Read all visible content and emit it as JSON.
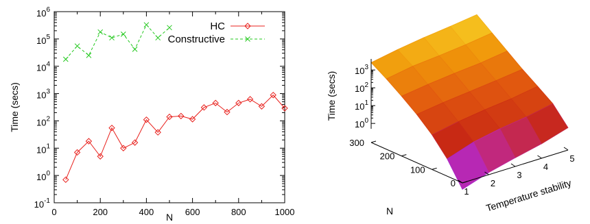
{
  "chart_data": [
    {
      "type": "line",
      "xlabel": "N",
      "ylabel": "Time (secs)",
      "xlim": [
        0,
        1000
      ],
      "ylim": [
        0.1,
        1000000
      ],
      "y_scale": "log",
      "xticks": [
        "0",
        "200",
        "400",
        "600",
        "800",
        "1000"
      ],
      "yticks": [
        {
          "base": "10",
          "exp": "-1",
          "value": 0.1
        },
        {
          "base": "10",
          "exp": "0",
          "value": 1
        },
        {
          "base": "10",
          "exp": "1",
          "value": 10
        },
        {
          "base": "10",
          "exp": "2",
          "value": 100
        },
        {
          "base": "10",
          "exp": "3",
          "value": 1000
        },
        {
          "base": "10",
          "exp": "4",
          "value": 10000
        },
        {
          "base": "10",
          "exp": "5",
          "value": 100000
        },
        {
          "base": "10",
          "exp": "6",
          "value": 1000000
        }
      ],
      "legend_position": "top-right",
      "grid": false,
      "series": [
        {
          "name": "HC",
          "color": "#e8201c",
          "marker": "diamond",
          "line": "solid",
          "x": [
            50,
            100,
            150,
            200,
            250,
            300,
            350,
            400,
            450,
            500,
            550,
            600,
            650,
            700,
            750,
            800,
            850,
            900,
            950,
            1000
          ],
          "y": [
            0.7,
            7,
            18,
            5,
            55,
            10,
            16,
            110,
            38,
            140,
            150,
            115,
            310,
            450,
            210,
            450,
            620,
            340,
            880,
            290
          ]
        },
        {
          "name": "Constructive",
          "color": "#23c81e",
          "marker": "x",
          "line": "dashed",
          "x": [
            50,
            100,
            150,
            200,
            250,
            300,
            350,
            400,
            450,
            500
          ],
          "y": [
            18000,
            55000,
            25000,
            180000,
            110000,
            150000,
            42000,
            330000,
            110000,
            260000
          ]
        }
      ]
    },
    {
      "type": "surface3d",
      "zlabel": "Time (secs)",
      "xlabel": "N",
      "ylabel": "Temperature stability",
      "z_scale": "log",
      "n_ticks": [
        "0",
        "100",
        "200",
        "300"
      ],
      "t_ticks": [
        "1",
        "2",
        "3",
        "4",
        "5"
      ],
      "z_ticks": [
        {
          "base": "10",
          "exp": "0",
          "value": 1
        },
        {
          "base": "10",
          "exp": "1",
          "value": 10
        },
        {
          "base": "10",
          "exp": "2",
          "value": 100
        },
        {
          "base": "10",
          "exp": "3",
          "value": 1000
        }
      ],
      "colormap": "purple-red-yellow",
      "n_values": [
        0,
        50,
        100,
        150,
        200,
        250,
        300
      ],
      "t_values": [
        1,
        2,
        3,
        4,
        5
      ],
      "z_values": [
        [
          0.15,
          0.3,
          0.5,
          0.8,
          1.5
        ],
        [
          1,
          2,
          3,
          4,
          6
        ],
        [
          4,
          6,
          8,
          10,
          14
        ],
        [
          12,
          16,
          20,
          25,
          32
        ],
        [
          30,
          40,
          50,
          60,
          80
        ],
        [
          70,
          100,
          120,
          150,
          200
        ],
        [
          150,
          220,
          300,
          380,
          500
        ]
      ]
    }
  ]
}
